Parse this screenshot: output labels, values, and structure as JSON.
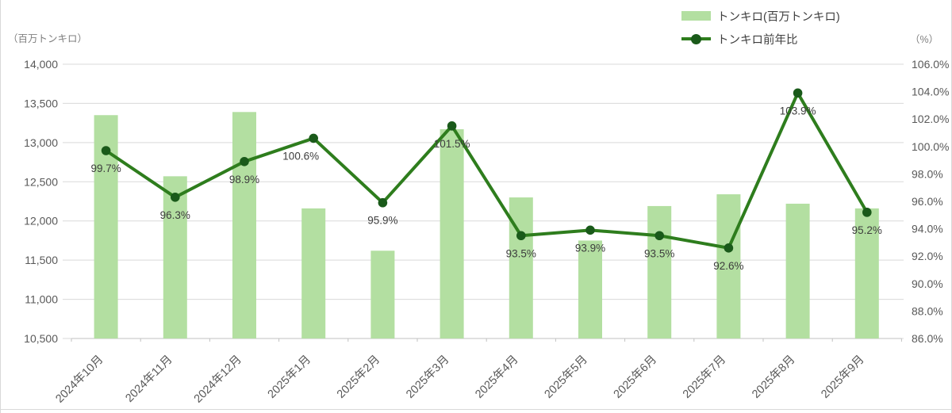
{
  "chart_data": {
    "type": "bar+line",
    "title": "",
    "categories": [
      "2024年10月",
      "2024年11月",
      "2024年12月",
      "2025年1月",
      "2025年2月",
      "2025年3月",
      "2025年4月",
      "2025年5月",
      "2025年6月",
      "2025年7月",
      "2025年8月",
      "2025年9月"
    ],
    "series": [
      {
        "name": "トンキロ(百万トンキロ)",
        "type": "bar",
        "axis": "left",
        "values": [
          13350,
          12570,
          13390,
          12160,
          11620,
          13170,
          12300,
          11750,
          12190,
          12340,
          12220,
          12160
        ]
      },
      {
        "name": "トンキロ前年比",
        "type": "line",
        "axis": "right",
        "values": [
          99.7,
          96.3,
          98.9,
          100.6,
          95.9,
          101.5,
          93.5,
          93.9,
          93.5,
          92.6,
          103.9,
          95.2
        ],
        "point_labels": [
          "99.7%",
          "96.3%",
          "98.9%",
          "100.6%",
          "95.9%",
          "101.5%",
          "93.5%",
          "93.9%",
          "93.5%",
          "92.6%",
          "103.9%",
          "95.2%"
        ]
      }
    ],
    "left_axis": {
      "title": "（百万トンキロ）",
      "min": 10500,
      "max": 14000,
      "step": 500,
      "tick_labels": [
        "14,000",
        "13,500",
        "13,000",
        "12,500",
        "12,000",
        "11,500",
        "11,000",
        "10,500"
      ]
    },
    "right_axis": {
      "title": "（%）",
      "min": 86,
      "max": 106,
      "step": 2,
      "tick_labels": [
        "106.0%",
        "104.0%",
        "102.0%",
        "100.0%",
        "98.0%",
        "96.0%",
        "94.0%",
        "92.0%",
        "90.0%",
        "88.0%",
        "86.0%"
      ]
    },
    "grid": true,
    "legend_position": "top-right",
    "colors": {
      "bar": "#b3dfa1",
      "line": "#2e7d1d",
      "marker": "#1a5a1a",
      "grid": "#d9d9d9",
      "axis_line": "#c2c2c2",
      "tick_text": "#595959",
      "label_text": "#3d3d3d",
      "caption_text": "#7f7f7f"
    }
  }
}
